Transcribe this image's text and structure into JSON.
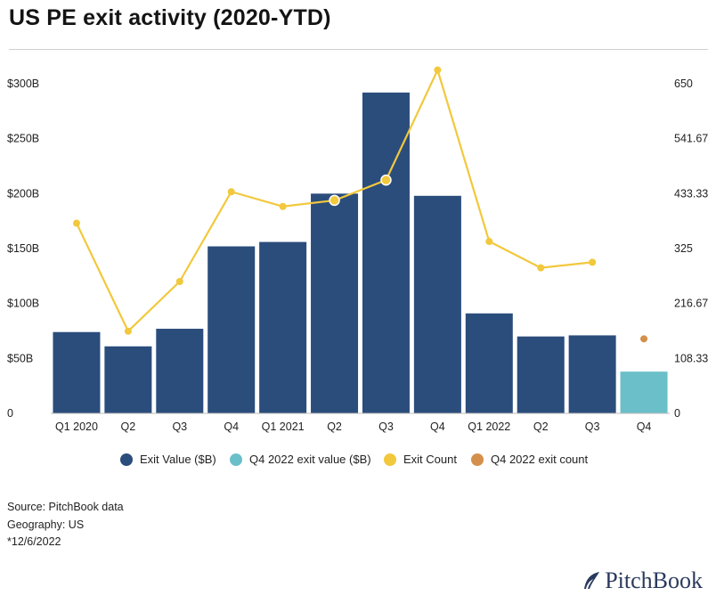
{
  "header": {
    "title": "US PE exit activity (2020-YTD)"
  },
  "chart_data": {
    "type": "bar",
    "categories": [
      "Q1 2020",
      "Q2",
      "Q3",
      "Q4",
      "Q1 2021",
      "Q2",
      "Q3",
      "Q4",
      "Q1 2022",
      "Q2",
      "Q3",
      "Q4"
    ],
    "series": [
      {
        "name": "Exit Value ($B)",
        "kind": "bar",
        "axis": "left",
        "color": "#2b4d7c",
        "values": [
          74,
          61,
          77,
          152,
          156,
          200,
          292,
          198,
          91,
          70,
          71,
          null
        ]
      },
      {
        "name": "Q4 2022 exit value ($B)",
        "kind": "bar",
        "axis": "left",
        "color": "#6bbfc9",
        "values": [
          null,
          null,
          null,
          null,
          null,
          null,
          null,
          null,
          null,
          null,
          null,
          38
        ]
      },
      {
        "name": "Exit Count",
        "kind": "line",
        "axis": "right",
        "color": "#f2c83c",
        "values": [
          375,
          162,
          260,
          437,
          408,
          420,
          460,
          677,
          339,
          287,
          298,
          null
        ]
      },
      {
        "name": "Q4 2022 exit count",
        "kind": "point",
        "axis": "right",
        "color": "#d4904a",
        "values": [
          null,
          null,
          null,
          null,
          null,
          null,
          null,
          null,
          null,
          null,
          null,
          147
        ]
      }
    ],
    "highlighted_points": [
      5,
      6
    ],
    "y_left": {
      "ticks": [
        "$300B",
        "$250B",
        "$200B",
        "$150B",
        "$100B",
        "$50B",
        "0"
      ],
      "range": [
        0,
        300
      ]
    },
    "y_right": {
      "ticks": [
        "650",
        "541.67",
        "433.33",
        "325",
        "216.67",
        "108.33",
        "0"
      ],
      "range": [
        0,
        650
      ]
    },
    "grid": false,
    "legend_position": "bottom"
  },
  "legend": {
    "items": [
      {
        "label": "Exit Value ($B)",
        "color": "#2b4d7c"
      },
      {
        "label": "Q4 2022 exit value ($B)",
        "color": "#6bbfc9"
      },
      {
        "label": "Exit Count",
        "color": "#f2c83c"
      },
      {
        "label": "Q4 2022 exit count",
        "color": "#d4904a"
      }
    ]
  },
  "notes": {
    "source": "Source: PitchBook data",
    "geography": "Geography: US",
    "date": "*12/6/2022"
  },
  "logo": {
    "text": "PitchBook"
  }
}
